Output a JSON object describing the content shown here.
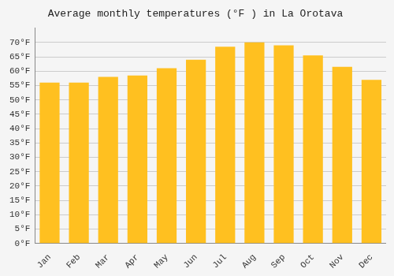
{
  "chart_data": {
    "type": "bar",
    "title": "Average monthly temperatures (°F ) in La Orotava",
    "categories": [
      "Jan",
      "Feb",
      "Mar",
      "Apr",
      "May",
      "Jun",
      "Jul",
      "Aug",
      "Sep",
      "Oct",
      "Nov",
      "Dec"
    ],
    "values": [
      56,
      56,
      58,
      58.5,
      61,
      64,
      68.5,
      70,
      69,
      65.5,
      61.5,
      57
    ],
    "color": "#FFC020",
    "ylim": [
      0,
      75
    ],
    "yticks": [
      {
        "value": 0,
        "label": "0°F"
      },
      {
        "value": 5,
        "label": "5°F"
      },
      {
        "value": 10,
        "label": "10°F"
      },
      {
        "value": 15,
        "label": "15°F"
      },
      {
        "value": 20,
        "label": "20°F"
      },
      {
        "value": 25,
        "label": "25°F"
      },
      {
        "value": 30,
        "label": "30°F"
      },
      {
        "value": 35,
        "label": "35°F"
      },
      {
        "value": 40,
        "label": "40°F"
      },
      {
        "value": 45,
        "label": "45°F"
      },
      {
        "value": 50,
        "label": "50°F"
      },
      {
        "value": 55,
        "label": "55°F"
      },
      {
        "value": 60,
        "label": "60°F"
      },
      {
        "value": 65,
        "label": "65°F"
      },
      {
        "value": 70,
        "label": "70°F"
      }
    ],
    "grid": true
  }
}
